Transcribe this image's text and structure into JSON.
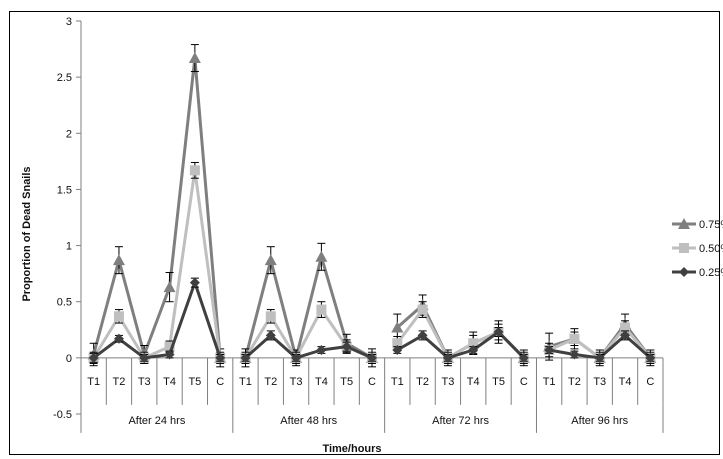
{
  "chart_data": {
    "type": "line",
    "title": "",
    "xlabel": "Time/hours",
    "ylabel": "Proportion of Dead Snails",
    "ylim": [
      -0.5,
      3
    ],
    "yticks": [
      "3",
      "2.5",
      "2",
      "1.5",
      "1",
      "0.5",
      "0",
      "-0.5"
    ],
    "grid": false,
    "legend_position": "right",
    "groups": [
      {
        "label": "After 24 hrs",
        "categories": [
          "T1",
          "T2",
          "T3",
          "T4",
          "T5",
          "C"
        ]
      },
      {
        "label": "After 48 hrs",
        "categories": [
          "T1",
          "T2",
          "T3",
          "T4",
          "T5",
          "C"
        ]
      },
      {
        "label": "After 72 hrs",
        "categories": [
          "T1",
          "T2",
          "T3",
          "T4",
          "T5",
          "C"
        ]
      },
      {
        "label": "After 96 hrs",
        "categories": [
          "T1",
          "T2",
          "T3",
          "T4",
          "C"
        ]
      }
    ],
    "series": [
      {
        "name": "0.75%",
        "color": "#7f7f7f",
        "marker": "triangle",
        "values": [
          0.03,
          0.87,
          0.03,
          0.63,
          2.67,
          0.0,
          0.0,
          0.87,
          0.0,
          0.9,
          0.13,
          0.0,
          0.27,
          0.47,
          0.0,
          0.13,
          0.23,
          0.0,
          0.1,
          0.17,
          0.0,
          0.3,
          0.0
        ],
        "errors": [
          0.1,
          0.12,
          0.08,
          0.13,
          0.12,
          0.08,
          0.08,
          0.12,
          0.07,
          0.12,
          0.08,
          0.08,
          0.12,
          0.09,
          0.07,
          0.1,
          0.1,
          0.07,
          0.12,
          0.09,
          0.07,
          0.09,
          0.07
        ]
      },
      {
        "name": "0.50%",
        "color": "#bfbfbf",
        "marker": "square",
        "values": [
          0.0,
          0.37,
          0.0,
          0.1,
          1.67,
          0.0,
          0.0,
          0.37,
          0.0,
          0.43,
          0.1,
          0.0,
          0.13,
          0.43,
          0.0,
          0.13,
          0.23,
          0.0,
          0.07,
          0.17,
          0.0,
          0.27,
          0.0
        ],
        "errors": [
          0.05,
          0.06,
          0.05,
          0.05,
          0.07,
          0.05,
          0.05,
          0.06,
          0.05,
          0.07,
          0.06,
          0.05,
          0.06,
          0.07,
          0.05,
          0.07,
          0.07,
          0.05,
          0.06,
          0.06,
          0.05,
          0.06,
          0.05
        ]
      },
      {
        "name": "0.25%",
        "color": "#404040",
        "marker": "diamond",
        "values": [
          0.0,
          0.17,
          0.0,
          0.03,
          0.67,
          0.0,
          0.0,
          0.2,
          0.0,
          0.07,
          0.1,
          0.0,
          0.07,
          0.2,
          0.0,
          0.07,
          0.23,
          0.0,
          0.07,
          0.03,
          0.0,
          0.2,
          0.0
        ],
        "errors": [
          0.04,
          0.03,
          0.03,
          0.03,
          0.04,
          0.03,
          0.03,
          0.04,
          0.03,
          0.03,
          0.04,
          0.03,
          0.03,
          0.04,
          0.03,
          0.03,
          0.04,
          0.03,
          0.03,
          0.03,
          0.03,
          0.04,
          0.03
        ]
      }
    ]
  }
}
